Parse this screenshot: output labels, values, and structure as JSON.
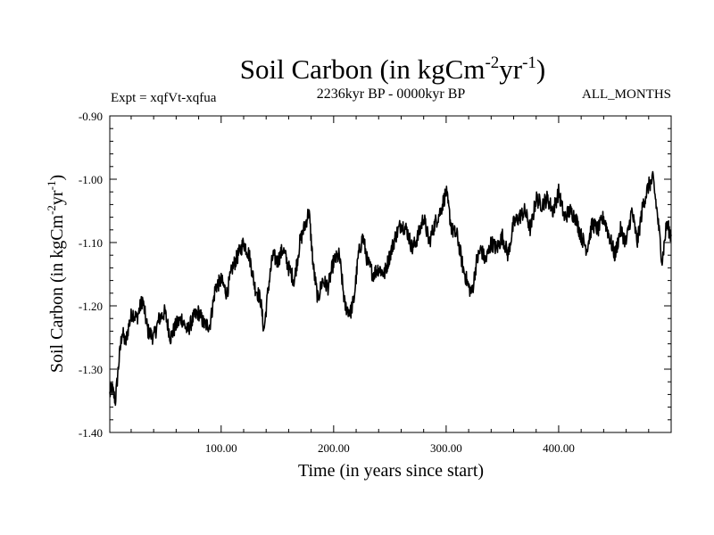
{
  "chart_data": {
    "type": "line",
    "title": "Soil Carbon (in kgCm",
    "title_sup1": "-2",
    "title_mid": "yr",
    "title_sup2": "-1",
    "title_end": ")",
    "ylabel": "Soil Carbon (in kgCm",
    "ylabel_sup1": "-2",
    "ylabel_mid": "yr",
    "ylabel_sup2": "-1",
    "ylabel_end": ")",
    "annotation_left": "Expt = xqfVt-xqfua",
    "annotation_center": "2236kyr BP - 0000kyr BP",
    "annotation_right": "ALL_MONTHS",
    "xlabel": "Time (in years since start)",
    "xlim": [
      1,
      500
    ],
    "ylim": [
      -1.4,
      -0.9
    ],
    "x_ticks": [
      100,
      200,
      300,
      400
    ],
    "x_tick_labels": [
      "100.00",
      "200.00",
      "300.00",
      "400.00"
    ],
    "y_ticks": [
      -1.4,
      -1.3,
      -1.2,
      -1.1,
      -1.0,
      -0.9
    ],
    "y_tick_labels": [
      "-1.40",
      "-1.30",
      "-1.20",
      "-1.10",
      "-1.00",
      "-0.90"
    ],
    "series": [
      {
        "name": "Soil Carbon",
        "color": "#000000",
        "x": [
          1,
          3,
          6,
          9,
          12,
          15,
          18,
          21,
          25,
          30,
          35,
          40,
          45,
          50,
          55,
          60,
          65,
          70,
          75,
          80,
          85,
          90,
          95,
          100,
          105,
          110,
          115,
          120,
          125,
          130,
          135,
          138,
          142,
          146,
          150,
          155,
          160,
          165,
          170,
          175,
          178,
          182,
          186,
          190,
          195,
          200,
          205,
          210,
          215,
          218,
          222,
          226,
          230,
          235,
          240,
          245,
          250,
          255,
          260,
          265,
          270,
          275,
          280,
          285,
          290,
          295,
          300,
          305,
          310,
          315,
          320,
          323,
          327,
          331,
          335,
          340,
          345,
          350,
          355,
          360,
          365,
          370,
          375,
          380,
          385,
          390,
          395,
          400,
          405,
          410,
          415,
          420,
          425,
          430,
          435,
          440,
          445,
          450,
          455,
          460,
          465,
          470,
          475,
          480,
          484,
          488,
          492,
          496,
          500
        ],
        "y": [
          -1.34,
          -1.33,
          -1.35,
          -1.29,
          -1.24,
          -1.26,
          -1.23,
          -1.21,
          -1.22,
          -1.19,
          -1.24,
          -1.25,
          -1.22,
          -1.21,
          -1.25,
          -1.23,
          -1.22,
          -1.24,
          -1.22,
          -1.21,
          -1.23,
          -1.23,
          -1.17,
          -1.16,
          -1.18,
          -1.14,
          -1.12,
          -1.1,
          -1.12,
          -1.17,
          -1.19,
          -1.24,
          -1.17,
          -1.12,
          -1.13,
          -1.11,
          -1.14,
          -1.16,
          -1.1,
          -1.07,
          -1.05,
          -1.14,
          -1.19,
          -1.16,
          -1.17,
          -1.13,
          -1.12,
          -1.2,
          -1.21,
          -1.19,
          -1.12,
          -1.09,
          -1.13,
          -1.15,
          -1.14,
          -1.15,
          -1.12,
          -1.09,
          -1.07,
          -1.08,
          -1.11,
          -1.09,
          -1.06,
          -1.1,
          -1.07,
          -1.05,
          -1.02,
          -1.08,
          -1.09,
          -1.14,
          -1.17,
          -1.18,
          -1.13,
          -1.11,
          -1.13,
          -1.1,
          -1.11,
          -1.09,
          -1.12,
          -1.07,
          -1.06,
          -1.05,
          -1.08,
          -1.03,
          -1.04,
          -1.03,
          -1.05,
          -1.02,
          -1.06,
          -1.05,
          -1.06,
          -1.09,
          -1.11,
          -1.07,
          -1.08,
          -1.06,
          -1.09,
          -1.12,
          -1.08,
          -1.1,
          -1.05,
          -1.1,
          -1.04,
          -1.01,
          -1.0,
          -1.06,
          -1.13,
          -1.07,
          -1.09
        ]
      }
    ]
  }
}
